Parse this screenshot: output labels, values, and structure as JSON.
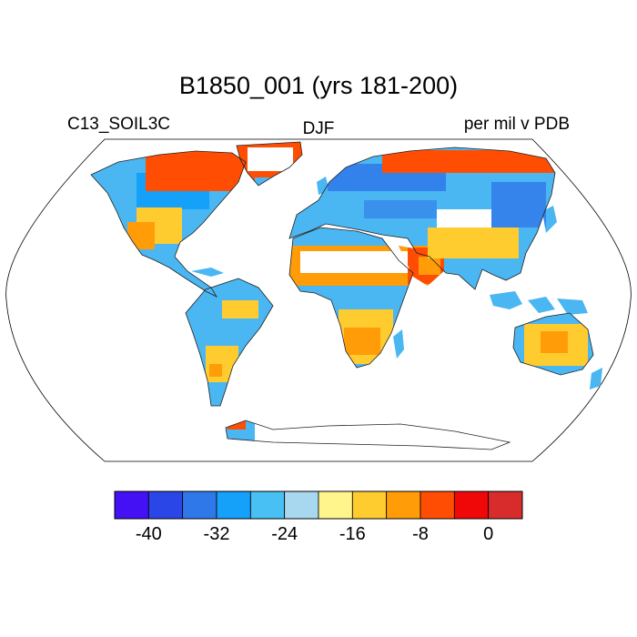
{
  "title": "B1850_001 (yrs 181-200)",
  "left_string": "C13_SOIL3C",
  "center_string": "DJF",
  "right_string": "per mil v PDB",
  "colorbar": {
    "colors": [
      "#4410f4",
      "#2a46e6",
      "#2f78ea",
      "#15a0fa",
      "#48c0f4",
      "#a8d8f0",
      "#fff58c",
      "#ffcc30",
      "#ff9c08",
      "#ff4e04",
      "#f00808",
      "#d82c2c"
    ],
    "labels": [
      "-40",
      "-32",
      "-24",
      "-16",
      "-8",
      "0"
    ]
  },
  "map": {
    "projection": "Robinson",
    "land_colors": [
      "#4ab6f2",
      "#2f78ea",
      "#15a0fa",
      "#ffcc30",
      "#ff9c08",
      "#ff4e04",
      "#ffffff"
    ],
    "ocean_color": "#ffffff"
  }
}
